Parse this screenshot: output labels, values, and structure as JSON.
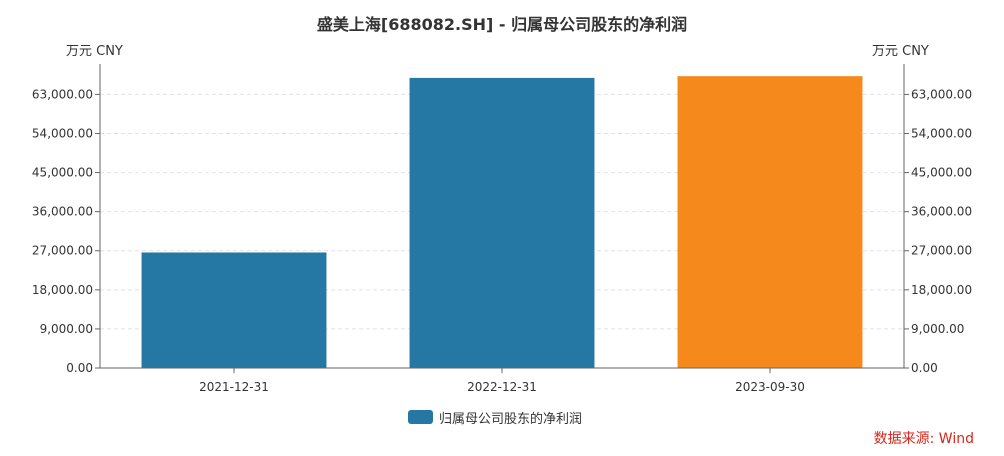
{
  "chart_data": {
    "type": "bar",
    "title": "盛美上海[688082.SH] - 归属母公司股东的净利润",
    "unit_left": "万元  CNY",
    "unit_right": "万元  CNY",
    "categories": [
      "2021-12-31",
      "2022-12-31",
      "2023-09-30"
    ],
    "series": [
      {
        "name": "归属母公司股东的净利润",
        "values": [
          26600,
          66800,
          67200
        ]
      }
    ],
    "bar_colors": [
      "#2577a4",
      "#2577a4",
      "#f5891c"
    ],
    "ylim": [
      0,
      70000
    ],
    "yticks": [
      0,
      9000,
      18000,
      27000,
      36000,
      45000,
      54000,
      63000
    ],
    "ytick_labels": [
      "0.00",
      "9,000.00",
      "18,000.00",
      "27,000.00",
      "36,000.00",
      "45,000.00",
      "54,000.00",
      "63,000.00"
    ],
    "grid": true,
    "legend_position": "bottom-center",
    "legend_color": "#2577a4"
  },
  "source": "数据来源: Wind"
}
